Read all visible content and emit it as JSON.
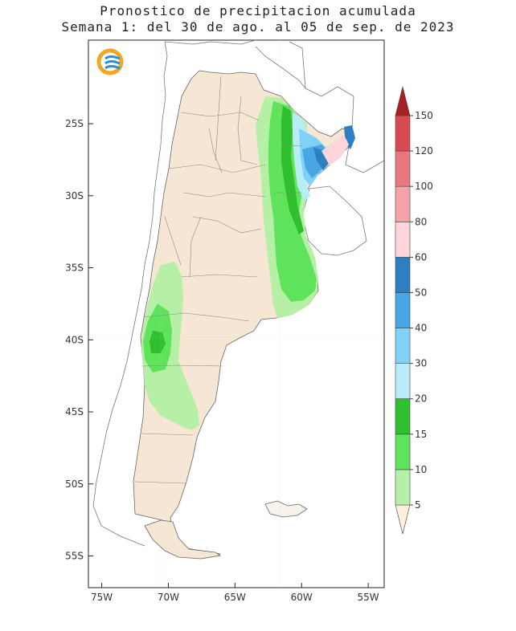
{
  "title": {
    "line1": "Pronostico de precipitacion acumulada",
    "line2": "Semana 1: del 30 de ago. al 05 de sep. de 2023"
  },
  "logo": {
    "icon": "smn-logo-icon",
    "ring_color": "#f2a623",
    "wave_color": "#2a8fd6"
  },
  "map": {
    "lat_ticks": [
      {
        "value": -25,
        "label": "25S"
      },
      {
        "value": -30,
        "label": "30S"
      },
      {
        "value": -35,
        "label": "35S"
      },
      {
        "value": -40,
        "label": "40S"
      },
      {
        "value": -45,
        "label": "45S"
      },
      {
        "value": -50,
        "label": "50S"
      },
      {
        "value": -55,
        "label": "55S"
      }
    ],
    "lon_ticks": [
      {
        "value": -75,
        "label": "75W"
      },
      {
        "value": -70,
        "label": "70W"
      },
      {
        "value": -65,
        "label": "65W"
      },
      {
        "value": -60,
        "label": "60W"
      },
      {
        "value": -55,
        "label": "55W"
      }
    ],
    "lon_range": [
      -76,
      -53.8
    ],
    "lat_range": [
      -57.2,
      -19.2
    ],
    "land_color": "#f5e7d3"
  },
  "colorbar": {
    "labels": [
      "5",
      "10",
      "15",
      "20",
      "30",
      "40",
      "50",
      "60",
      "80",
      "100",
      "120",
      "150"
    ],
    "colors": [
      "#fbf0dc",
      "#b5f0a6",
      "#5ee35a",
      "#2fbf2f",
      "#b8ecf6",
      "#7fd2f5",
      "#48a6e5",
      "#2c7fc0",
      "#fbd5d9",
      "#f4a3a9",
      "#e87880",
      "#d84a50",
      "#a81e24"
    ]
  }
}
